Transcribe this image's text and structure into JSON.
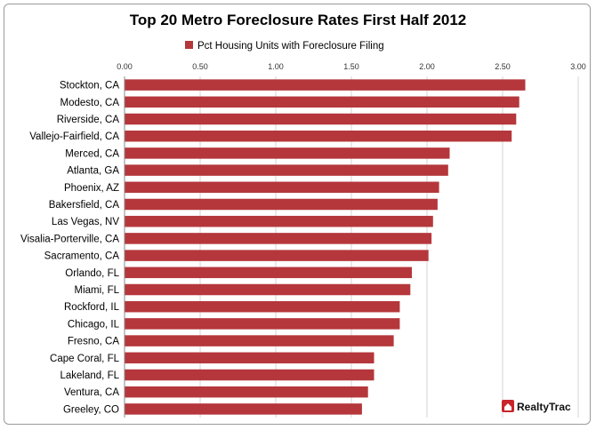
{
  "chart_data": {
    "type": "bar",
    "orientation": "horizontal",
    "title": "Top 20 Metro Foreclosure Rates First Half 2012",
    "legend_position": "top",
    "grid": true,
    "xlim": [
      0,
      3.0
    ],
    "xticks": [
      "0.00",
      "0.50",
      "1.00",
      "1.50",
      "2.00",
      "2.50",
      "3.00"
    ],
    "categories": [
      "Stockton, CA",
      "Modesto, CA",
      "Riverside, CA",
      "Vallejo-Fairfield, CA",
      "Merced, CA",
      "Atlanta, GA",
      "Phoenix, AZ",
      "Bakersfield, CA",
      "Las Vegas, NV",
      "Visalia-Porterville, CA",
      "Sacramento, CA",
      "Orlando, FL",
      "Miami, FL",
      "Rockford, IL",
      "Chicago, IL",
      "Fresno, CA",
      "Cape Coral, FL",
      "Lakeland, FL",
      "Ventura, CA",
      "Greeley, CO"
    ],
    "series": [
      {
        "name": "Pct Housing Units with Foreclosure Filing",
        "color": "#b5373b",
        "values": [
          2.65,
          2.61,
          2.59,
          2.56,
          2.15,
          2.14,
          2.08,
          2.07,
          2.04,
          2.03,
          2.01,
          1.9,
          1.89,
          1.82,
          1.82,
          1.78,
          1.65,
          1.65,
          1.61,
          1.57
        ]
      }
    ]
  },
  "branding": {
    "logo_text": "RealtyTrac",
    "logo_icon": "house-icon",
    "logo_color": "#c8242b"
  }
}
